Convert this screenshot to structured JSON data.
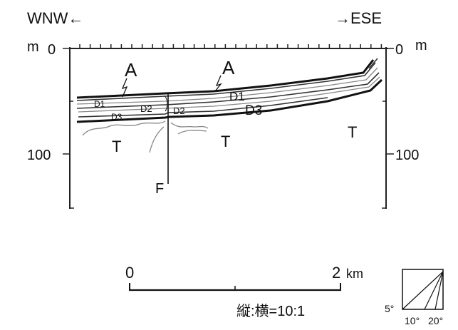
{
  "direction": {
    "left": "WNW←",
    "right": "→ESE"
  },
  "axes": {
    "unit_left": "m",
    "unit_right": "m",
    "left_ticks": [
      "0",
      "100"
    ],
    "right_ticks": [
      "0",
      "100"
    ]
  },
  "layers": {
    "A_left": "A",
    "A_right": "A",
    "D1_left": "D1",
    "D1_right": "D1",
    "D2_left": "D2",
    "D2_right": "D2",
    "D3_left": "D3",
    "D3_right": "D3",
    "T_left": "T",
    "T_mid": "T",
    "T_right": "T",
    "fault": "F"
  },
  "scale_bar": {
    "start": "0",
    "end": "2",
    "unit": "km",
    "ratio": "縦:横=10:1"
  },
  "slope_key": {
    "a": "5°",
    "b": "10°",
    "c": "20°"
  }
}
